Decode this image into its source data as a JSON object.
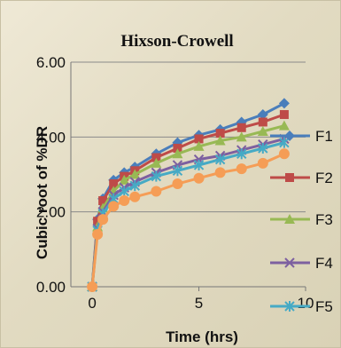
{
  "chart_data": {
    "type": "line",
    "title": "Hixson-Crowell",
    "xlabel": "Time (hrs)",
    "ylabel": "Cubic root of %DR",
    "xlim": [
      -1,
      10
    ],
    "ylim": [
      0,
      6
    ],
    "x_ticks": [
      "0",
      "5",
      "10"
    ],
    "y_ticks": [
      "0.00",
      "2.00",
      "4.00",
      "6.00"
    ],
    "grid": "horizontal",
    "legend": "right",
    "x": [
      0,
      0.25,
      0.5,
      1,
      1.5,
      2,
      3,
      4,
      5,
      6,
      7,
      8,
      9
    ],
    "series": [
      {
        "name": "F1",
        "color": "#4a7ebb",
        "marker": "diamond",
        "values": [
          0,
          1.8,
          2.35,
          2.85,
          3.05,
          3.2,
          3.55,
          3.85,
          4.05,
          4.2,
          4.4,
          4.6,
          4.9
        ]
      },
      {
        "name": "F2",
        "color": "#be4b48",
        "marker": "square",
        "values": [
          0,
          1.75,
          2.3,
          2.75,
          2.95,
          3.1,
          3.45,
          3.7,
          3.95,
          4.1,
          4.25,
          4.4,
          4.6
        ]
      },
      {
        "name": "F3",
        "color": "#98b954",
        "marker": "triangle",
        "values": [
          0,
          1.6,
          2.1,
          2.55,
          2.85,
          3.0,
          3.3,
          3.55,
          3.75,
          3.9,
          4.0,
          4.15,
          4.3
        ]
      },
      {
        "name": "F4",
        "color": "#7d60a0",
        "marker": "x",
        "values": [
          0,
          1.55,
          2.0,
          2.45,
          2.65,
          2.8,
          3.05,
          3.25,
          3.4,
          3.5,
          3.65,
          3.8,
          3.95
        ]
      },
      {
        "name": "F5",
        "color": "#46aac5",
        "marker": "star",
        "values": [
          0,
          1.5,
          1.95,
          2.35,
          2.55,
          2.7,
          2.95,
          3.1,
          3.25,
          3.4,
          3.55,
          3.7,
          3.85
        ]
      },
      {
        "name": "",
        "color": "#f59d56",
        "marker": "circle",
        "values": [
          0,
          1.4,
          1.8,
          2.15,
          2.3,
          2.4,
          2.55,
          2.75,
          2.9,
          3.05,
          3.15,
          3.3,
          3.55
        ]
      }
    ]
  }
}
